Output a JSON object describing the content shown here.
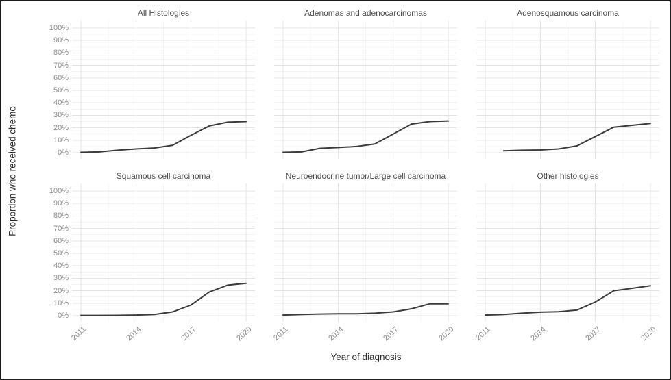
{
  "figure": {
    "border_color": "#1c1c1c",
    "background": "#ffffff",
    "line_color": "#3b3b3b",
    "grid_major_color": "#e4e4e4",
    "grid_minor_color": "#f4f4f4"
  },
  "chart_data": {
    "type": "line",
    "layout": "facet-grid-2x3",
    "xlabel": "Year of diagnosis",
    "ylabel": "Proportion who received chemo",
    "xlim": [
      2011,
      2020
    ],
    "ylim": [
      0,
      100
    ],
    "grid": "major+minor",
    "legend": "none",
    "x_tick_values": [
      2011,
      2014,
      2017,
      2020
    ],
    "x_tick_labels": [
      "2011",
      "2014",
      "2017",
      "2020"
    ],
    "y_tick_values": [
      0,
      10,
      20,
      30,
      40,
      50,
      60,
      70,
      80,
      90,
      100
    ],
    "y_tick_labels": [
      "0%",
      "10%",
      "20%",
      "30%",
      "40%",
      "50%",
      "60%",
      "70%",
      "80%",
      "90%",
      "100%"
    ],
    "y_unit": "percent",
    "panels": [
      {
        "title": "All Histologies",
        "x": [
          2011,
          2012,
          2013,
          2014,
          2015,
          2016,
          2017,
          2018,
          2019,
          2020
        ],
        "y": [
          0.3,
          0.6,
          2,
          3,
          3.8,
          6,
          14,
          21.5,
          24.5,
          25
        ]
      },
      {
        "title": "Adenomas and adenocarcinomas",
        "x": [
          2011,
          2012,
          2013,
          2014,
          2015,
          2016,
          2017,
          2018,
          2019,
          2020
        ],
        "y": [
          0.3,
          0.6,
          3.5,
          4.2,
          5,
          7,
          15,
          23,
          25,
          25.5
        ]
      },
      {
        "title": "Adenosquamous carcinoma",
        "x": [
          2012,
          2013,
          2014,
          2015,
          2016,
          2017,
          2018,
          2019,
          2020
        ],
        "y": [
          1.5,
          2,
          2.2,
          3,
          5.5,
          13,
          20.5,
          22,
          23.5
        ]
      },
      {
        "title": "Squamous cell carcinoma",
        "x": [
          2011,
          2012,
          2013,
          2014,
          2015,
          2016,
          2017,
          2018,
          2019,
          2020
        ],
        "y": [
          0.2,
          0.2,
          0.3,
          0.5,
          1,
          3,
          8.5,
          19,
          24.5,
          26
        ]
      },
      {
        "title": "Neuroendocrine tumor/Large cell carcinoma",
        "x": [
          2011,
          2012,
          2013,
          2014,
          2015,
          2016,
          2017,
          2018,
          2019,
          2020
        ],
        "y": [
          0.5,
          1,
          1.3,
          1.5,
          1.5,
          2,
          3,
          5.5,
          9.5,
          9.5
        ]
      },
      {
        "title": "Other histologies",
        "x": [
          2011,
          2012,
          2013,
          2014,
          2015,
          2016,
          2017,
          2018,
          2019,
          2020
        ],
        "y": [
          0.5,
          1,
          2,
          2.8,
          3.2,
          4.5,
          11,
          20,
          22,
          24
        ]
      }
    ]
  }
}
